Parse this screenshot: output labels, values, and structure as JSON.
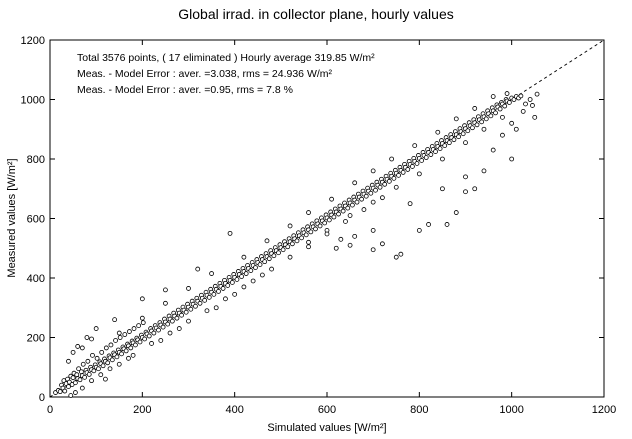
{
  "chart_data": {
    "type": "scatter",
    "title": "Global irrad. in collector plane, hourly values",
    "xlabel": "Simulated values  [W/m²]",
    "ylabel": "Measured values  [W/m²]",
    "xlim": [
      0,
      1200
    ],
    "ylim": [
      0,
      1200
    ],
    "x_ticks": [
      0,
      200,
      400,
      600,
      800,
      1000,
      1200
    ],
    "y_ticks": [
      0,
      200,
      400,
      600,
      800,
      1000,
      1200
    ],
    "x_tick_labels": [
      "0",
      "200",
      "400",
      "600",
      "800",
      "1000",
      "1200"
    ],
    "y_tick_labels": [
      "0",
      "200",
      "400",
      "600",
      "800",
      "1000",
      "1200"
    ],
    "grid": false,
    "reference_line": {
      "style": "dashed",
      "equation": "y = x"
    },
    "annotations": [
      "Total  3576 points, (  17 eliminated )  Hourly average  319.85 W/m²",
      "Meas. - Model Error  : aver. =3.038, rms = 24.936 W/m²",
      "Meas. - Model Error  : aver. =0.95, rms = 7.8 %"
    ],
    "total_points": 3576,
    "eliminated_points": 17,
    "hourly_average_wm2": 319.85,
    "error_aver_wm2": 3.038,
    "error_rms_wm2": 24.936,
    "error_aver_pct": 0.95,
    "error_rms_pct": 7.8,
    "points": [
      [
        12,
        15
      ],
      [
        18,
        22
      ],
      [
        22,
        18
      ],
      [
        25,
        40
      ],
      [
        28,
        30
      ],
      [
        30,
        55
      ],
      [
        32,
        20
      ],
      [
        35,
        45
      ],
      [
        38,
        60
      ],
      [
        40,
        35
      ],
      [
        42,
        50
      ],
      [
        45,
        70
      ],
      [
        48,
        42
      ],
      [
        50,
        65
      ],
      [
        52,
        80
      ],
      [
        55,
        48
      ],
      [
        58,
        75
      ],
      [
        60,
        62
      ],
      [
        62,
        95
      ],
      [
        65,
        58
      ],
      [
        68,
        85
      ],
      [
        70,
        72
      ],
      [
        72,
        110
      ],
      [
        75,
        66
      ],
      [
        78,
        90
      ],
      [
        80,
        82
      ],
      [
        82,
        120
      ],
      [
        85,
        76
      ],
      [
        88,
        100
      ],
      [
        90,
        92
      ],
      [
        92,
        140
      ],
      [
        95,
        88
      ],
      [
        98,
        108
      ],
      [
        100,
        100
      ],
      [
        102,
        130
      ],
      [
        105,
        95
      ],
      [
        108,
        118
      ],
      [
        110,
        112
      ],
      [
        112,
        150
      ],
      [
        115,
        105
      ],
      [
        118,
        128
      ],
      [
        120,
        120
      ],
      [
        122,
        165
      ],
      [
        125,
        115
      ],
      [
        128,
        138
      ],
      [
        130,
        132
      ],
      [
        132,
        175
      ],
      [
        135,
        125
      ],
      [
        138,
        148
      ],
      [
        140,
        142
      ],
      [
        142,
        190
      ],
      [
        145,
        135
      ],
      [
        148,
        158
      ],
      [
        150,
        150
      ],
      [
        152,
        200
      ],
      [
        155,
        145
      ],
      [
        158,
        168
      ],
      [
        160,
        162
      ],
      [
        162,
        210
      ],
      [
        165,
        155
      ],
      [
        168,
        178
      ],
      [
        170,
        172
      ],
      [
        172,
        220
      ],
      [
        175,
        165
      ],
      [
        178,
        188
      ],
      [
        180,
        182
      ],
      [
        182,
        230
      ],
      [
        185,
        175
      ],
      [
        188,
        198
      ],
      [
        190,
        192
      ],
      [
        192,
        240
      ],
      [
        195,
        185
      ],
      [
        198,
        208
      ],
      [
        200,
        200
      ],
      [
        202,
        250
      ],
      [
        205,
        195
      ],
      [
        208,
        218
      ],
      [
        210,
        212
      ],
      [
        215,
        205
      ],
      [
        218,
        230
      ],
      [
        220,
        222
      ],
      [
        225,
        215
      ],
      [
        228,
        240
      ],
      [
        230,
        232
      ],
      [
        235,
        225
      ],
      [
        238,
        250
      ],
      [
        240,
        242
      ],
      [
        245,
        235
      ],
      [
        248,
        262
      ],
      [
        250,
        252
      ],
      [
        255,
        245
      ],
      [
        258,
        272
      ],
      [
        260,
        262
      ],
      [
        265,
        255
      ],
      [
        268,
        282
      ],
      [
        270,
        272
      ],
      [
        275,
        265
      ],
      [
        278,
        292
      ],
      [
        280,
        282
      ],
      [
        285,
        275
      ],
      [
        288,
        302
      ],
      [
        290,
        292
      ],
      [
        295,
        285
      ],
      [
        298,
        312
      ],
      [
        300,
        302
      ],
      [
        305,
        295
      ],
      [
        308,
        322
      ],
      [
        310,
        312
      ],
      [
        315,
        305
      ],
      [
        318,
        332
      ],
      [
        320,
        322
      ],
      [
        325,
        315
      ],
      [
        328,
        342
      ],
      [
        330,
        332
      ],
      [
        335,
        325
      ],
      [
        338,
        352
      ],
      [
        340,
        342
      ],
      [
        345,
        335
      ],
      [
        348,
        362
      ],
      [
        350,
        352
      ],
      [
        355,
        345
      ],
      [
        358,
        372
      ],
      [
        360,
        362
      ],
      [
        365,
        355
      ],
      [
        368,
        382
      ],
      [
        370,
        372
      ],
      [
        375,
        365
      ],
      [
        378,
        392
      ],
      [
        380,
        382
      ],
      [
        385,
        375
      ],
      [
        388,
        402
      ],
      [
        390,
        392
      ],
      [
        395,
        385
      ],
      [
        398,
        412
      ],
      [
        400,
        402
      ],
      [
        405,
        395
      ],
      [
        408,
        422
      ],
      [
        410,
        412
      ],
      [
        415,
        405
      ],
      [
        418,
        432
      ],
      [
        420,
        422
      ],
      [
        425,
        415
      ],
      [
        428,
        442
      ],
      [
        430,
        432
      ],
      [
        435,
        425
      ],
      [
        438,
        452
      ],
      [
        440,
        442
      ],
      [
        445,
        435
      ],
      [
        448,
        462
      ],
      [
        450,
        452
      ],
      [
        455,
        445
      ],
      [
        458,
        472
      ],
      [
        460,
        462
      ],
      [
        465,
        455
      ],
      [
        468,
        482
      ],
      [
        470,
        472
      ],
      [
        475,
        465
      ],
      [
        478,
        492
      ],
      [
        480,
        482
      ],
      [
        485,
        475
      ],
      [
        488,
        502
      ],
      [
        490,
        492
      ],
      [
        495,
        485
      ],
      [
        498,
        512
      ],
      [
        500,
        502
      ],
      [
        505,
        495
      ],
      [
        508,
        522
      ],
      [
        510,
        512
      ],
      [
        515,
        505
      ],
      [
        518,
        532
      ],
      [
        520,
        522
      ],
      [
        525,
        515
      ],
      [
        528,
        542
      ],
      [
        530,
        532
      ],
      [
        535,
        525
      ],
      [
        538,
        552
      ],
      [
        540,
        542
      ],
      [
        545,
        535
      ],
      [
        548,
        562
      ],
      [
        550,
        552
      ],
      [
        555,
        545
      ],
      [
        558,
        572
      ],
      [
        560,
        562
      ],
      [
        565,
        555
      ],
      [
        568,
        582
      ],
      [
        570,
        572
      ],
      [
        575,
        565
      ],
      [
        578,
        592
      ],
      [
        580,
        582
      ],
      [
        585,
        575
      ],
      [
        588,
        602
      ],
      [
        590,
        592
      ],
      [
        595,
        585
      ],
      [
        598,
        612
      ],
      [
        600,
        602
      ],
      [
        605,
        595
      ],
      [
        608,
        622
      ],
      [
        610,
        612
      ],
      [
        615,
        605
      ],
      [
        618,
        632
      ],
      [
        620,
        622
      ],
      [
        625,
        615
      ],
      [
        628,
        642
      ],
      [
        630,
        632
      ],
      [
        635,
        625
      ],
      [
        638,
        652
      ],
      [
        640,
        642
      ],
      [
        645,
        635
      ],
      [
        648,
        662
      ],
      [
        650,
        652
      ],
      [
        655,
        645
      ],
      [
        658,
        672
      ],
      [
        660,
        662
      ],
      [
        665,
        655
      ],
      [
        668,
        682
      ],
      [
        670,
        672
      ],
      [
        675,
        665
      ],
      [
        678,
        692
      ],
      [
        680,
        682
      ],
      [
        685,
        675
      ],
      [
        688,
        702
      ],
      [
        690,
        692
      ],
      [
        695,
        685
      ],
      [
        698,
        712
      ],
      [
        700,
        702
      ],
      [
        705,
        695
      ],
      [
        708,
        722
      ],
      [
        710,
        712
      ],
      [
        715,
        705
      ],
      [
        718,
        732
      ],
      [
        720,
        722
      ],
      [
        725,
        715
      ],
      [
        728,
        742
      ],
      [
        730,
        732
      ],
      [
        735,
        725
      ],
      [
        738,
        752
      ],
      [
        740,
        742
      ],
      [
        745,
        735
      ],
      [
        748,
        762
      ],
      [
        750,
        752
      ],
      [
        755,
        745
      ],
      [
        758,
        772
      ],
      [
        760,
        762
      ],
      [
        765,
        755
      ],
      [
        768,
        782
      ],
      [
        770,
        772
      ],
      [
        775,
        765
      ],
      [
        778,
        792
      ],
      [
        780,
        782
      ],
      [
        785,
        775
      ],
      [
        788,
        802
      ],
      [
        790,
        792
      ],
      [
        795,
        785
      ],
      [
        798,
        812
      ],
      [
        800,
        802
      ],
      [
        805,
        795
      ],
      [
        808,
        822
      ],
      [
        810,
        812
      ],
      [
        815,
        805
      ],
      [
        818,
        832
      ],
      [
        820,
        822
      ],
      [
        825,
        815
      ],
      [
        828,
        842
      ],
      [
        830,
        832
      ],
      [
        835,
        825
      ],
      [
        838,
        852
      ],
      [
        840,
        842
      ],
      [
        845,
        835
      ],
      [
        848,
        862
      ],
      [
        850,
        852
      ],
      [
        855,
        845
      ],
      [
        858,
        872
      ],
      [
        860,
        862
      ],
      [
        865,
        855
      ],
      [
        868,
        882
      ],
      [
        870,
        872
      ],
      [
        875,
        865
      ],
      [
        878,
        892
      ],
      [
        880,
        882
      ],
      [
        885,
        875
      ],
      [
        888,
        902
      ],
      [
        890,
        892
      ],
      [
        895,
        885
      ],
      [
        898,
        912
      ],
      [
        900,
        902
      ],
      [
        905,
        895
      ],
      [
        908,
        922
      ],
      [
        910,
        912
      ],
      [
        915,
        905
      ],
      [
        918,
        932
      ],
      [
        920,
        922
      ],
      [
        925,
        915
      ],
      [
        928,
        942
      ],
      [
        930,
        932
      ],
      [
        935,
        925
      ],
      [
        938,
        952
      ],
      [
        940,
        942
      ],
      [
        945,
        935
      ],
      [
        948,
        962
      ],
      [
        950,
        952
      ],
      [
        955,
        945
      ],
      [
        958,
        972
      ],
      [
        960,
        962
      ],
      [
        965,
        955
      ],
      [
        968,
        982
      ],
      [
        970,
        975
      ],
      [
        975,
        968
      ],
      [
        978,
        990
      ],
      [
        980,
        985
      ],
      [
        985,
        978
      ],
      [
        988,
        1000
      ],
      [
        990,
        995
      ],
      [
        995,
        990
      ],
      [
        1000,
        1005
      ],
      [
        1005,
        1000
      ],
      [
        1010,
        1010
      ],
      [
        1015,
        1005
      ],
      [
        1020,
        1012
      ],
      [
        40,
        120
      ],
      [
        50,
        150
      ],
      [
        60,
        170
      ],
      [
        80,
        200
      ],
      [
        100,
        230
      ],
      [
        45,
        5
      ],
      [
        55,
        15
      ],
      [
        70,
        30
      ],
      [
        90,
        55
      ],
      [
        110,
        75
      ],
      [
        130,
        95
      ],
      [
        150,
        110
      ],
      [
        180,
        140
      ],
      [
        220,
        180
      ],
      [
        260,
        215
      ],
      [
        300,
        255
      ],
      [
        340,
        290
      ],
      [
        380,
        330
      ],
      [
        420,
        370
      ],
      [
        460,
        410
      ],
      [
        150,
        215
      ],
      [
        200,
        265
      ],
      [
        250,
        315
      ],
      [
        300,
        365
      ],
      [
        350,
        415
      ],
      [
        390,
        550
      ],
      [
        420,
        470
      ],
      [
        470,
        525
      ],
      [
        520,
        575
      ],
      [
        560,
        620
      ],
      [
        610,
        665
      ],
      [
        660,
        720
      ],
      [
        700,
        760
      ],
      [
        740,
        800
      ],
      [
        790,
        845
      ],
      [
        840,
        890
      ],
      [
        880,
        935
      ],
      [
        920,
        970
      ],
      [
        960,
        1010
      ],
      [
        990,
        1020
      ],
      [
        560,
        520
      ],
      [
        600,
        560
      ],
      [
        650,
        610
      ],
      [
        700,
        655
      ],
      [
        750,
        705
      ],
      [
        800,
        750
      ],
      [
        850,
        800
      ],
      [
        900,
        855
      ],
      [
        940,
        900
      ],
      [
        980,
        940
      ],
      [
        620,
        500
      ],
      [
        650,
        510
      ],
      [
        660,
        540
      ],
      [
        630,
        530
      ],
      [
        700,
        495
      ],
      [
        720,
        515
      ],
      [
        750,
        470
      ],
      [
        760,
        480
      ],
      [
        800,
        560
      ],
      [
        820,
        580
      ],
      [
        860,
        580
      ],
      [
        880,
        620
      ],
      [
        900,
        690
      ],
      [
        920,
        700
      ],
      [
        940,
        760
      ],
      [
        960,
        830
      ],
      [
        1000,
        800
      ],
      [
        1010,
        900
      ],
      [
        1025,
        960
      ],
      [
        1040,
        1000
      ],
      [
        1045,
        980
      ],
      [
        1050,
        940
      ],
      [
        1055,
        1018
      ],
      [
        700,
        560
      ],
      [
        780,
        650
      ],
      [
        850,
        700
      ],
      [
        900,
        740
      ],
      [
        980,
        880
      ],
      [
        1000,
        920
      ],
      [
        1030,
        985
      ],
      [
        140,
        260
      ],
      [
        200,
        330
      ],
      [
        250,
        360
      ],
      [
        320,
        430
      ],
      [
        90,
        195
      ],
      [
        70,
        165
      ],
      [
        120,
        60
      ],
      [
        170,
        130
      ],
      [
        240,
        190
      ],
      [
        280,
        230
      ],
      [
        360,
        300
      ],
      [
        400,
        345
      ],
      [
        440,
        390
      ],
      [
        480,
        430
      ],
      [
        520,
        470
      ],
      [
        560,
        505
      ],
      [
        600,
        548
      ],
      [
        640,
        590
      ],
      [
        680,
        630
      ],
      [
        720,
        670
      ]
    ]
  }
}
